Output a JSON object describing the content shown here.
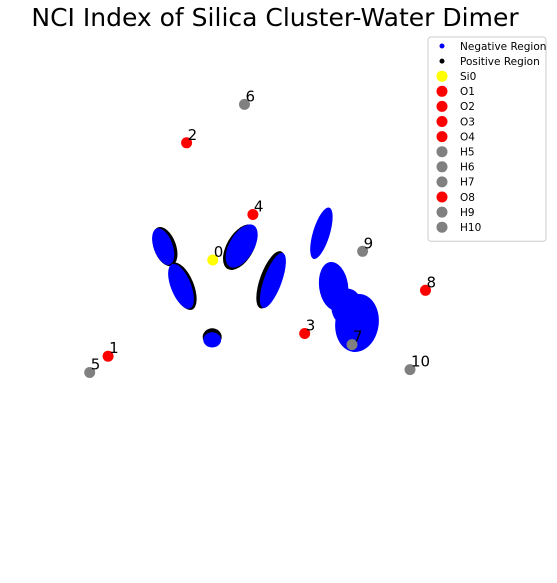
{
  "chart_data": {
    "type": "scatter",
    "title": "NCI Index of Silica Cluster-Water Dimer",
    "colors": {
      "negative": "#0000ff",
      "positive": "#000000",
      "Si": "#ffff00",
      "O": "#ff0000",
      "H": "#808080"
    },
    "legend": {
      "placement": "top-right",
      "entries": [
        {
          "label": "Negative Region",
          "color": "#0000ff",
          "kind": "small"
        },
        {
          "label": "Positive Region",
          "color": "#000000",
          "kind": "small"
        },
        {
          "label": "Si0",
          "color": "#ffff00",
          "kind": "large"
        },
        {
          "label": "O1",
          "color": "#ff0000",
          "kind": "large"
        },
        {
          "label": "O2",
          "color": "#ff0000",
          "kind": "large"
        },
        {
          "label": "O3",
          "color": "#ff0000",
          "kind": "large"
        },
        {
          "label": "O4",
          "color": "#ff0000",
          "kind": "large"
        },
        {
          "label": "H5",
          "color": "#808080",
          "kind": "large"
        },
        {
          "label": "H6",
          "color": "#808080",
          "kind": "large"
        },
        {
          "label": "H7",
          "color": "#808080",
          "kind": "large"
        },
        {
          "label": "O8",
          "color": "#ff0000",
          "kind": "large"
        },
        {
          "label": "H9",
          "color": "#808080",
          "kind": "large"
        },
        {
          "label": "H10",
          "color": "#808080",
          "kind": "large"
        }
      ]
    },
    "xlim": [
      0,
      100
    ],
    "ylim": [
      0,
      100
    ],
    "atoms": [
      {
        "index": "0",
        "element": "Si",
        "color": "#ffff00",
        "x": 38.2,
        "y": 55.4
      },
      {
        "index": "1",
        "element": "O",
        "color": "#ff0000",
        "x": 19.4,
        "y": 38.9
      },
      {
        "index": "2",
        "element": "O",
        "color": "#ff0000",
        "x": 33.5,
        "y": 75.5
      },
      {
        "index": "3",
        "element": "O",
        "color": "#ff0000",
        "x": 54.7,
        "y": 42.8
      },
      {
        "index": "4",
        "element": "O",
        "color": "#ff0000",
        "x": 45.4,
        "y": 63.2
      },
      {
        "index": "5",
        "element": "H",
        "color": "#808080",
        "x": 16.1,
        "y": 36.1
      },
      {
        "index": "6",
        "element": "H",
        "color": "#808080",
        "x": 43.9,
        "y": 82.1
      },
      {
        "index": "7",
        "element": "H",
        "color": "#808080",
        "x": 63.2,
        "y": 40.9
      },
      {
        "index": "8",
        "element": "O",
        "color": "#ff0000",
        "x": 76.4,
        "y": 50.2
      },
      {
        "index": "9",
        "element": "H",
        "color": "#808080",
        "x": 65.1,
        "y": 56.9
      },
      {
        "index": "10",
        "element": "H",
        "color": "#808080",
        "x": 73.6,
        "y": 36.6
      }
    ],
    "regions": [
      {
        "sign": "positive",
        "shape": "ellipse",
        "cx": 29.6,
        "cy": 57.7,
        "rx": 2.0,
        "ry": 3.5,
        "rot": -20
      },
      {
        "sign": "negative",
        "shape": "ellipse",
        "cx": 29.3,
        "cy": 57.7,
        "rx": 1.7,
        "ry": 3.3,
        "rot": -20
      },
      {
        "sign": "positive",
        "shape": "ellipse",
        "cx": 32.8,
        "cy": 50.9,
        "rx": 2.0,
        "ry": 4.3,
        "rot": -22
      },
      {
        "sign": "negative",
        "shape": "ellipse",
        "cx": 32.5,
        "cy": 50.9,
        "rx": 1.8,
        "ry": 4.1,
        "rot": -22
      },
      {
        "sign": "positive",
        "shape": "ellipse",
        "cx": 43.1,
        "cy": 57.6,
        "rx": 2.4,
        "ry": 4.3,
        "rot": 30
      },
      {
        "sign": "negative",
        "shape": "ellipse",
        "cx": 43.4,
        "cy": 57.8,
        "rx": 2.2,
        "ry": 4.1,
        "rot": 30
      },
      {
        "sign": "positive",
        "shape": "ellipse",
        "cx": 48.6,
        "cy": 52.0,
        "rx": 1.9,
        "ry": 5.2,
        "rot": 20
      },
      {
        "sign": "negative",
        "shape": "ellipse",
        "cx": 49.0,
        "cy": 51.9,
        "rx": 1.6,
        "ry": 5.0,
        "rot": 20
      },
      {
        "sign": "negative",
        "shape": "ellipse",
        "cx": 57.7,
        "cy": 60.0,
        "rx": 1.5,
        "ry": 4.6,
        "rot": 17
      },
      {
        "sign": "positive",
        "shape": "ellipse",
        "cx": 38.1,
        "cy": 42.2,
        "rx": 1.7,
        "ry": 1.5,
        "rot": 0
      },
      {
        "sign": "negative",
        "shape": "ellipse",
        "cx": 38.1,
        "cy": 41.7,
        "rx": 1.6,
        "ry": 1.3,
        "rot": 0
      },
      {
        "sign": "negative",
        "shape": "ellipse",
        "cx": 59.9,
        "cy": 50.9,
        "rx": 2.6,
        "ry": 4.2,
        "rot": -8
      },
      {
        "sign": "negative",
        "shape": "ellipse",
        "cx": 64.1,
        "cy": 44.6,
        "rx": 3.9,
        "ry": 5.0,
        "rot": 8
      },
      {
        "sign": "negative",
        "shape": "ellipse",
        "cx": 62.3,
        "cy": 47.3,
        "rx": 2.8,
        "ry": 3.2,
        "rot": 0
      }
    ]
  }
}
